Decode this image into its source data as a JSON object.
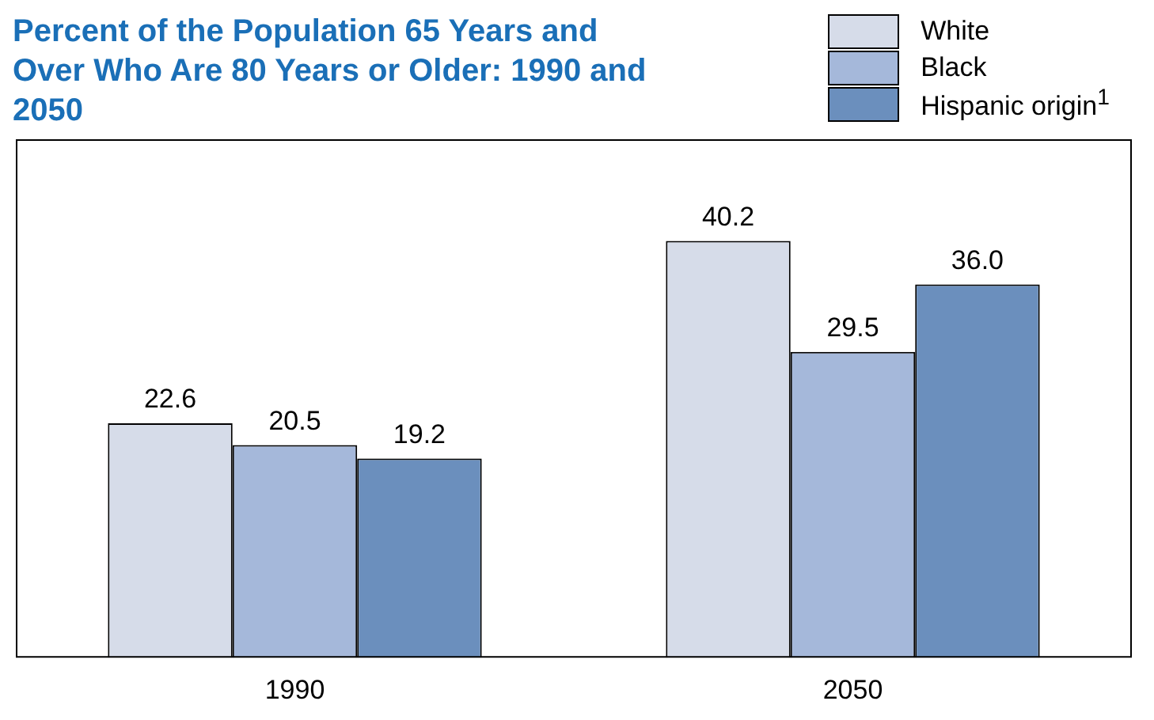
{
  "chart_data": {
    "type": "bar",
    "title": "Percent of the Population 65 Years and Over Who Are 80 Years or Older:  1990 and 2050",
    "categories": [
      "1990",
      "2050"
    ],
    "legend": "top right",
    "grid": false,
    "tick_labels": "x",
    "series": [
      {
        "name": "White",
        "color": "#d6dce9",
        "values": [
          22.6,
          40.2
        ],
        "value_labels": [
          "22.6",
          "40.2"
        ]
      },
      {
        "name": "Black",
        "color": "#a5b8da",
        "values": [
          20.5,
          29.5
        ],
        "value_labels": [
          "20.5",
          "29.5"
        ]
      },
      {
        "name": "Hispanic origin$^{1}$",
        "color": "#6b8fbd",
        "values": [
          19.2,
          36.0
        ],
        "value_labels": [
          "19.2",
          "36.0"
        ]
      }
    ]
  }
}
